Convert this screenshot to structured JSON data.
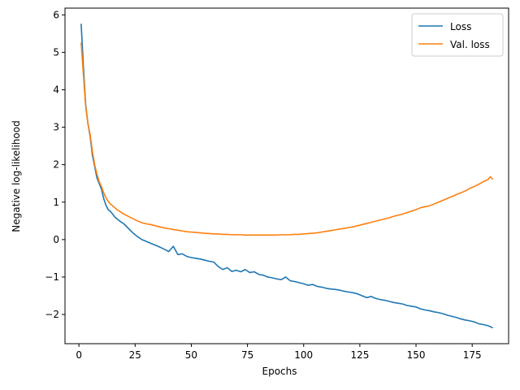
{
  "chart_data": {
    "type": "line",
    "xlabel": "Epochs",
    "ylabel": "Negative log-likelihood",
    "xlim": [
      -6.2,
      191.2
    ],
    "ylim": [
      -2.78,
      6.18
    ],
    "x_ticks": [
      0,
      25,
      50,
      75,
      100,
      125,
      150,
      175
    ],
    "x_tick_labels": [
      "0",
      "25",
      "50",
      "75",
      "100",
      "125",
      "150",
      "175"
    ],
    "y_ticks": [
      -2,
      -1,
      0,
      1,
      2,
      3,
      4,
      5,
      6
    ],
    "y_tick_labels": [
      "−2",
      "−1",
      "0",
      "1",
      "2",
      "3",
      "4",
      "5",
      "6"
    ],
    "legend_position": "top-right",
    "grid": false,
    "series": [
      {
        "name": "Loss",
        "color": "#1f77b4",
        "x": [
          1,
          2,
          3,
          4,
          5,
          6,
          7,
          8,
          9,
          10,
          11,
          12,
          13,
          14,
          15,
          16,
          17,
          18,
          19,
          20,
          22,
          24,
          26,
          28,
          30,
          32,
          34,
          36,
          38,
          40,
          42,
          44,
          46,
          48,
          50,
          52,
          54,
          56,
          58,
          60,
          62,
          64,
          66,
          68,
          70,
          72,
          74,
          76,
          78,
          80,
          82,
          84,
          86,
          88,
          90,
          92,
          94,
          96,
          98,
          100,
          102,
          104,
          106,
          108,
          110,
          112,
          114,
          116,
          118,
          120,
          122,
          124,
          126,
          128,
          130,
          132,
          134,
          136,
          138,
          140,
          142,
          144,
          146,
          148,
          150,
          152,
          154,
          156,
          158,
          160,
          162,
          164,
          166,
          168,
          170,
          172,
          174,
          176,
          178,
          180,
          182,
          184
        ],
        "y": [
          5.75,
          4.6,
          3.6,
          3.1,
          2.75,
          2.25,
          1.95,
          1.65,
          1.5,
          1.35,
          1.1,
          0.92,
          0.8,
          0.75,
          0.68,
          0.6,
          0.55,
          0.5,
          0.46,
          0.42,
          0.3,
          0.18,
          0.08,
          0.0,
          -0.05,
          -0.1,
          -0.15,
          -0.2,
          -0.26,
          -0.32,
          -0.18,
          -0.4,
          -0.38,
          -0.45,
          -0.48,
          -0.5,
          -0.52,
          -0.55,
          -0.58,
          -0.6,
          -0.72,
          -0.8,
          -0.75,
          -0.85,
          -0.82,
          -0.86,
          -0.8,
          -0.88,
          -0.86,
          -0.93,
          -0.95,
          -1.0,
          -1.02,
          -1.05,
          -1.07,
          -1.0,
          -1.1,
          -1.12,
          -1.15,
          -1.18,
          -1.22,
          -1.2,
          -1.25,
          -1.27,
          -1.3,
          -1.32,
          -1.33,
          -1.35,
          -1.38,
          -1.4,
          -1.42,
          -1.45,
          -1.5,
          -1.55,
          -1.52,
          -1.57,
          -1.6,
          -1.62,
          -1.65,
          -1.68,
          -1.7,
          -1.72,
          -1.76,
          -1.78,
          -1.8,
          -1.85,
          -1.88,
          -1.9,
          -1.93,
          -1.95,
          -1.98,
          -2.02,
          -2.05,
          -2.08,
          -2.12,
          -2.15,
          -2.17,
          -2.2,
          -2.25,
          -2.27,
          -2.3,
          -2.35
        ]
      },
      {
        "name": "Val. loss",
        "color": "#ff7f0e",
        "x": [
          1,
          2,
          3,
          4,
          5,
          6,
          7,
          8,
          9,
          10,
          11,
          12,
          13,
          14,
          15,
          16,
          17,
          18,
          19,
          20,
          22,
          24,
          26,
          28,
          30,
          32,
          34,
          36,
          38,
          40,
          42,
          44,
          46,
          48,
          50,
          52,
          54,
          56,
          58,
          60,
          62,
          64,
          66,
          68,
          70,
          72,
          74,
          76,
          78,
          80,
          82,
          84,
          86,
          88,
          90,
          92,
          94,
          96,
          98,
          100,
          102,
          104,
          106,
          108,
          110,
          112,
          114,
          116,
          118,
          120,
          122,
          124,
          126,
          128,
          130,
          132,
          134,
          136,
          138,
          140,
          142,
          144,
          146,
          148,
          150,
          152,
          154,
          156,
          158,
          160,
          162,
          164,
          166,
          168,
          170,
          172,
          174,
          176,
          178,
          180,
          182,
          183,
          184
        ],
        "y": [
          5.25,
          4.4,
          3.55,
          3.1,
          2.8,
          2.35,
          2.0,
          1.75,
          1.55,
          1.42,
          1.25,
          1.12,
          1.02,
          0.95,
          0.9,
          0.85,
          0.8,
          0.76,
          0.72,
          0.68,
          0.62,
          0.56,
          0.5,
          0.45,
          0.42,
          0.4,
          0.37,
          0.34,
          0.31,
          0.29,
          0.27,
          0.25,
          0.23,
          0.21,
          0.2,
          0.19,
          0.18,
          0.17,
          0.16,
          0.15,
          0.15,
          0.14,
          0.14,
          0.13,
          0.13,
          0.13,
          0.12,
          0.12,
          0.12,
          0.12,
          0.12,
          0.12,
          0.12,
          0.12,
          0.13,
          0.13,
          0.13,
          0.14,
          0.14,
          0.15,
          0.16,
          0.17,
          0.18,
          0.2,
          0.22,
          0.24,
          0.26,
          0.28,
          0.3,
          0.32,
          0.34,
          0.37,
          0.4,
          0.43,
          0.46,
          0.49,
          0.52,
          0.55,
          0.58,
          0.62,
          0.65,
          0.68,
          0.72,
          0.76,
          0.8,
          0.85,
          0.88,
          0.9,
          0.95,
          1.0,
          1.05,
          1.1,
          1.15,
          1.2,
          1.25,
          1.3,
          1.37,
          1.42,
          1.48,
          1.55,
          1.6,
          1.68,
          1.62
        ]
      }
    ]
  }
}
